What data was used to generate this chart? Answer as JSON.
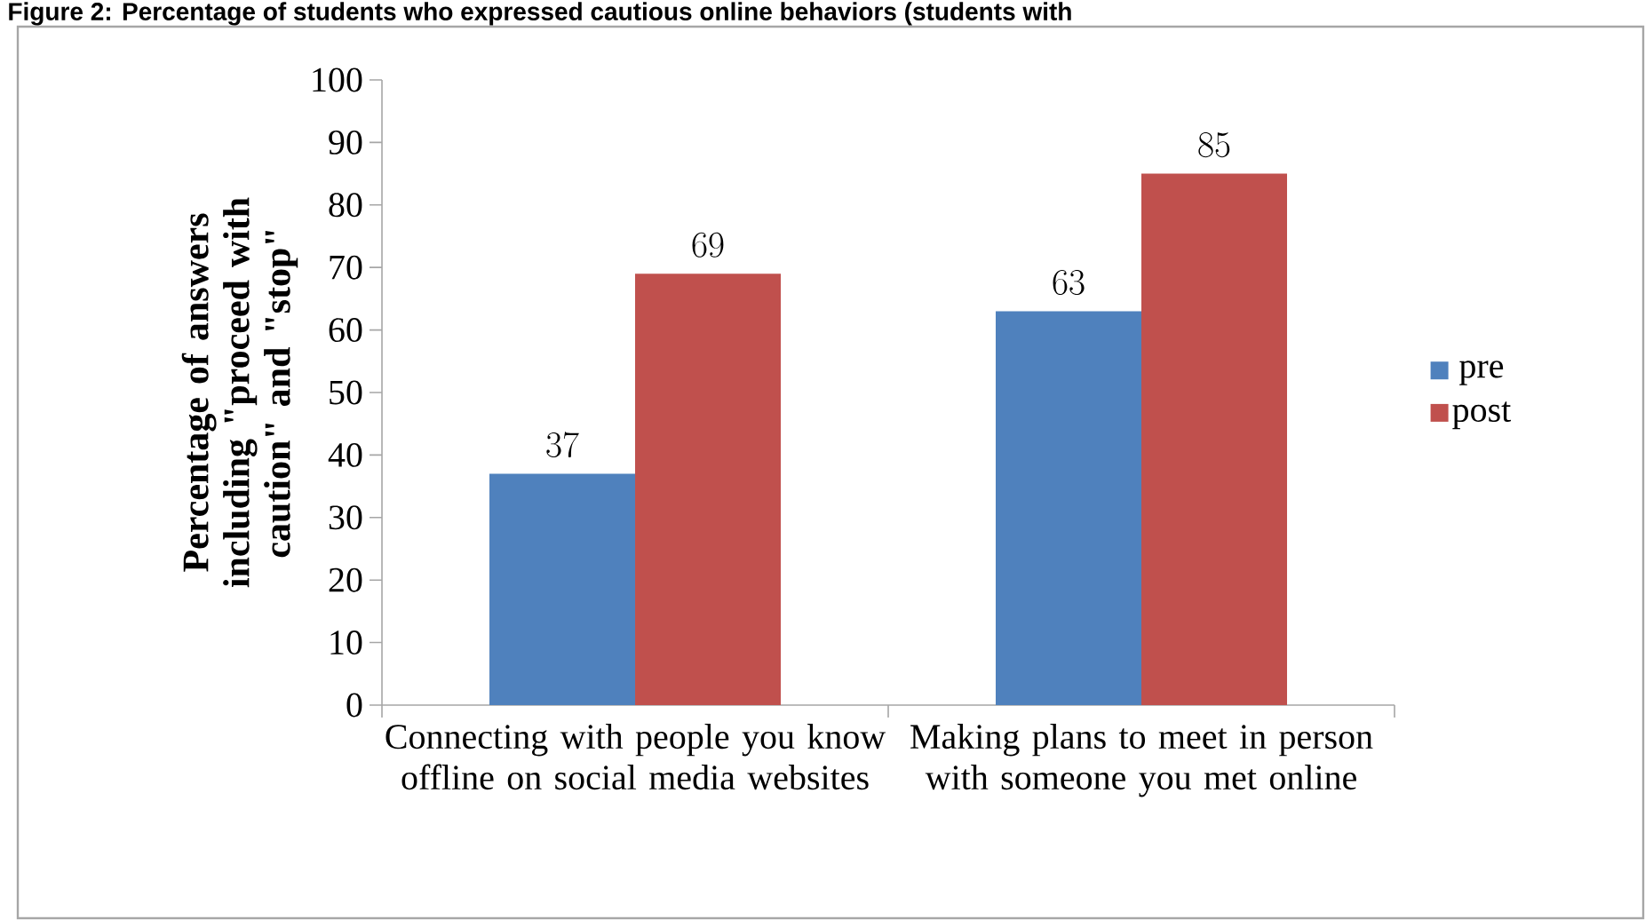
{
  "chart_data": {
    "type": "bar",
    "title": "Figure 2: Percentage of students who expressed cautious online behaviors (students with",
    "ylabel": "Percentage of answers including \"proceed with caution\" and \"stop\"",
    "categories": [
      "Connecting with people you know offline on social media websites",
      "Making plans to meet in person with someone you met online"
    ],
    "series": [
      {
        "name": "pre",
        "color": "#4f81bd",
        "values": [
          37,
          63
        ]
      },
      {
        "name": "post",
        "color": "#c0504d",
        "values": [
          69,
          85
        ]
      }
    ],
    "ylim": [
      0,
      100
    ],
    "yticks": [
      0,
      10,
      20,
      30,
      40,
      50,
      60,
      70,
      80,
      90,
      100
    ],
    "data_labels": true,
    "legend": "right"
  }
}
